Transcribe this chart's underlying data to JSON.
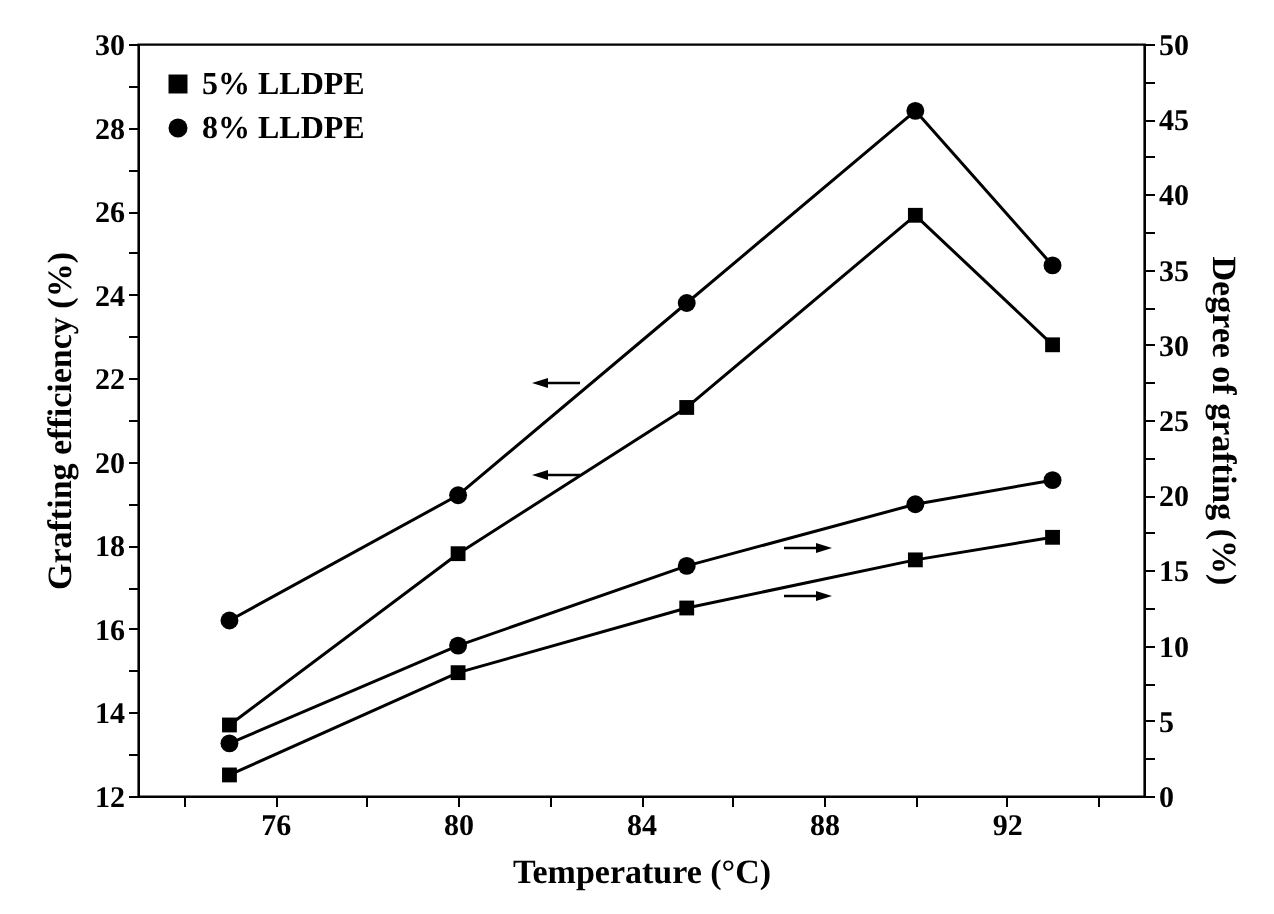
{
  "chart_data": {
    "type": "line",
    "xlabel": "Temperature (°C)",
    "ylabel": "Grafting efficiency (%)",
    "y2label": "Degree of grafting (%)",
    "x": [
      75,
      80,
      85,
      90,
      93
    ],
    "xlim": [
      73,
      95
    ],
    "xticks": [
      {
        "value": 74,
        "label": null
      },
      76,
      {
        "value": 78,
        "label": null
      },
      80,
      {
        "value": 82,
        "label": null
      },
      84,
      {
        "value": 86,
        "label": null
      },
      88,
      {
        "value": 90,
        "label": null
      },
      92,
      {
        "value": 94,
        "label": null
      }
    ],
    "ylim": [
      12,
      30
    ],
    "yticks": [
      12,
      {
        "value": 13,
        "label": null
      },
      14,
      {
        "value": 15,
        "label": null
      },
      16,
      {
        "value": 17,
        "label": null
      },
      18,
      {
        "value": 19,
        "label": null
      },
      20,
      {
        "value": 21,
        "label": null
      },
      22,
      {
        "value": 23,
        "label": null
      },
      24,
      {
        "value": 25,
        "label": null
      },
      26,
      {
        "value": 27,
        "label": null
      },
      28,
      {
        "value": 29,
        "label": null
      },
      30
    ],
    "y2lim": [
      0,
      50
    ],
    "y2ticks": [
      0,
      {
        "value": 2.5,
        "label": null
      },
      5,
      {
        "value": 7.5,
        "label": null
      },
      10,
      {
        "value": 12.5,
        "label": null
      },
      15,
      {
        "value": 17.5,
        "label": null
      },
      20,
      {
        "value": 22.5,
        "label": null
      },
      25,
      {
        "value": 27.5,
        "label": null
      },
      30,
      {
        "value": 32.5,
        "label": null
      },
      35,
      {
        "value": 37.5,
        "label": null
      },
      40,
      {
        "value": 42.5,
        "label": null
      },
      45,
      {
        "value": 47.5,
        "label": null
      },
      50
    ],
    "legend": "top left",
    "series": [
      {
        "name": "5% LLDPE",
        "color": "#000000",
        "marker": "square",
        "values": [
          13.7,
          17.8,
          21.3,
          25.9,
          22.8
        ]
      },
      {
        "name": "8% LLDPE",
        "color": "#000000",
        "marker": "circle",
        "values": [
          16.2,
          19.2,
          23.8,
          28.4,
          24.7
        ]
      },
      {
        "color": "#000000",
        "marker": "square",
        "axis": "y2",
        "values": [
          1.4,
          8.2,
          12.5,
          15.7,
          17.2
        ]
      },
      {
        "color": "#000000",
        "marker": "circle",
        "axis": "y2",
        "values": [
          3.5,
          10.0,
          15.3,
          19.4,
          21.0
        ]
      }
    ]
  }
}
